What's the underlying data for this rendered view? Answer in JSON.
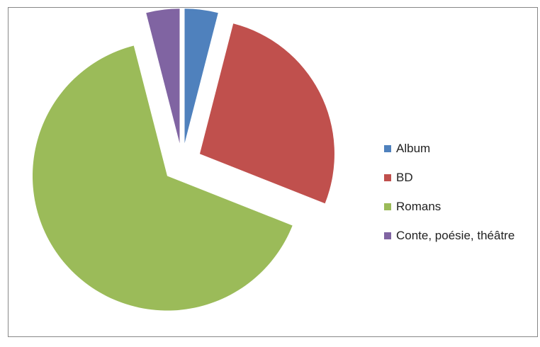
{
  "chart_data": {
    "type": "pie",
    "exploded": true,
    "start_angle_deg": 0,
    "direction": "clockwise",
    "legend_position": "right",
    "slices": [
      {
        "label": "Album",
        "value": 4,
        "color": "#4F81BD"
      },
      {
        "label": "BD",
        "value": 27,
        "color": "#C0504D"
      },
      {
        "label": "Romans",
        "value": 65,
        "color": "#9BBB59"
      },
      {
        "label": "Conte, poésie, théâtre",
        "value": 4,
        "color": "#8064A2"
      }
    ]
  }
}
